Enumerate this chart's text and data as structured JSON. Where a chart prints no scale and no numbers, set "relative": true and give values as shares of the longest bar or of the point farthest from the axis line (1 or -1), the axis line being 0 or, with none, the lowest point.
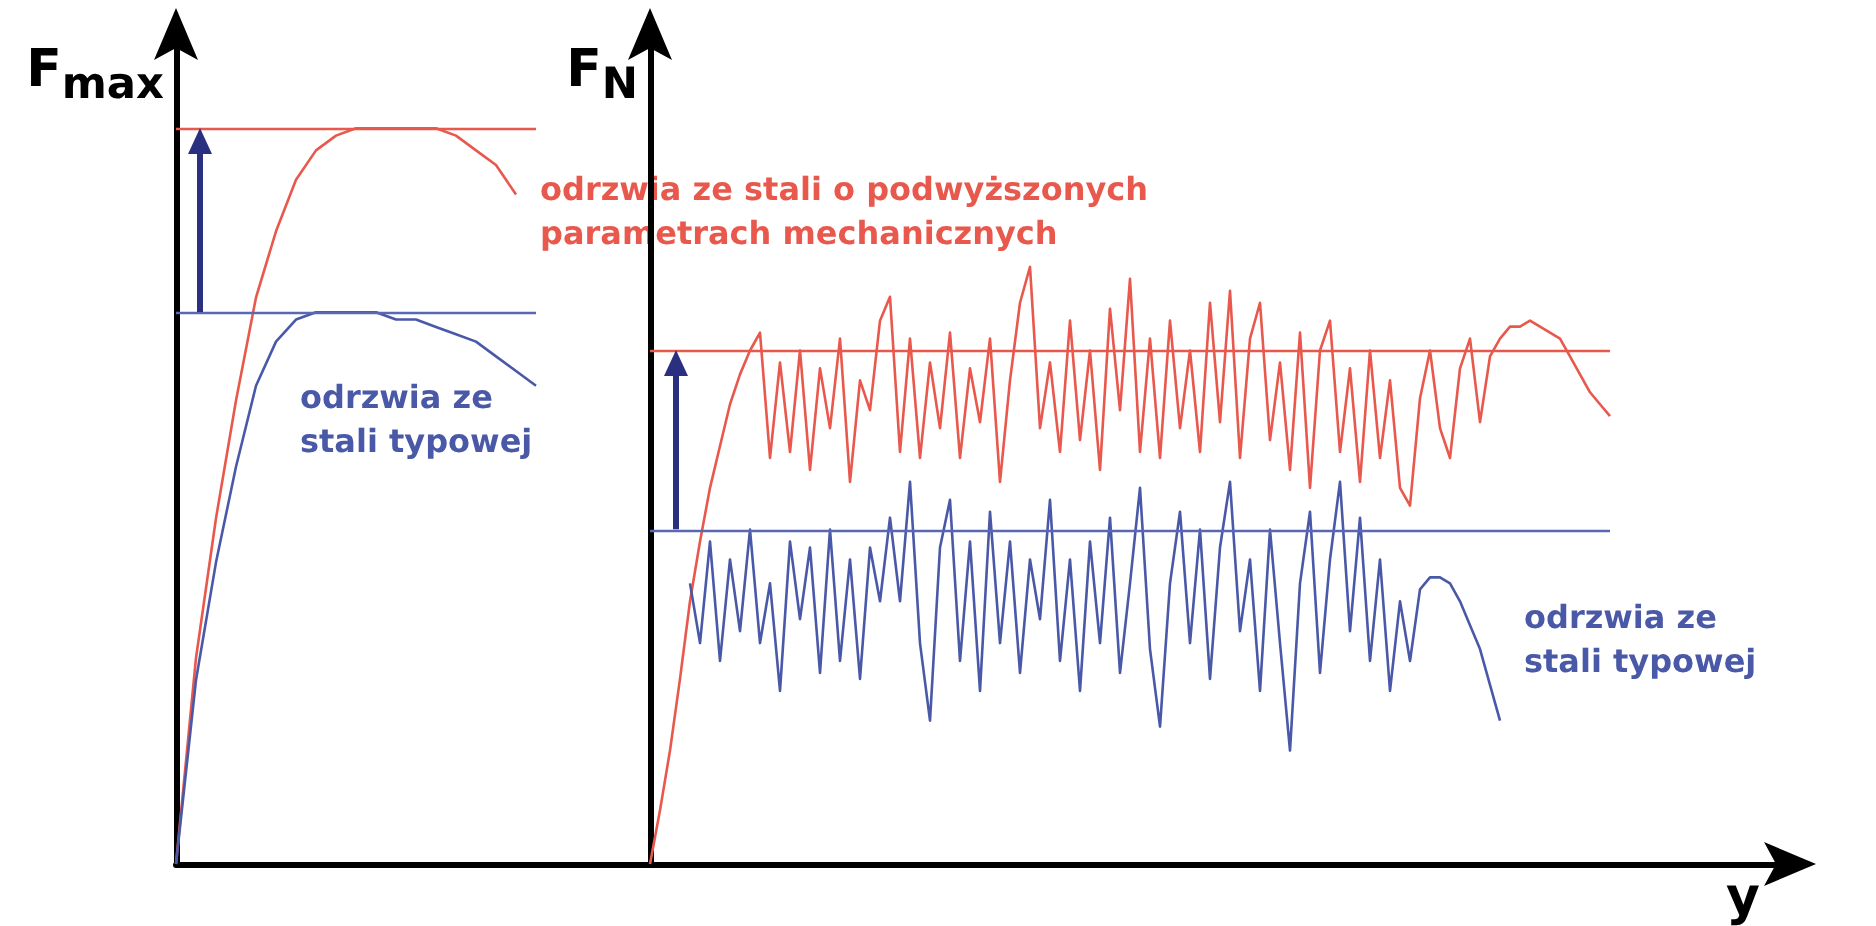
{
  "chart_data": [
    {
      "type": "line",
      "ylabel": "F$_{max}$",
      "relative": true,
      "categories": [
        null,
        null,
        null,
        null,
        null,
        null,
        null,
        null,
        null,
        null,
        null,
        null,
        null,
        null,
        null,
        null,
        null,
        null,
        null
      ],
      "series": [
        {
          "name": "odrzwia ze stali o podwyższonych parametrach mechanicznych",
          "color": "#e8584c",
          "values": [
            0,
            0.28,
            0.47,
            0.63,
            0.77,
            0.86,
            0.93,
            0.97,
            0.99,
            1,
            1,
            1,
            1,
            1,
            0.99,
            0.97,
            0.95,
            0.91,
            null
          ]
        },
        {
          "name": "odrzwia ze stali typowej",
          "color": "#4a58a8",
          "values": [
            0,
            0.25,
            0.41,
            0.54,
            0.65,
            0.71,
            0.74,
            0.75,
            0.75,
            0.75,
            0.75,
            0.74,
            0.74,
            0.73,
            0.72,
            0.71,
            0.69,
            0.67,
            0.65
          ]
        }
      ],
      "ref_lines": [
        {
          "axis": "y",
          "value": 1,
          "color": "#e8584c"
        },
        {
          "axis": "y",
          "value": 0.75,
          "color": "#5a68b4"
        }
      ]
    },
    {
      "type": "line",
      "ylabel": "F$_{N}$",
      "xlabel": "y",
      "relative": true,
      "categories": [
        null,
        null,
        null,
        null,
        null,
        null,
        null,
        null,
        null,
        null,
        null,
        null,
        null,
        null,
        null,
        null,
        null,
        null,
        null,
        null,
        null,
        null,
        null,
        null,
        null,
        null,
        null,
        null,
        null,
        null,
        null,
        null,
        null,
        null,
        null,
        null,
        null,
        null,
        null,
        null,
        null,
        null,
        null,
        null,
        null,
        null,
        null,
        null,
        null,
        null,
        null,
        null,
        null,
        null,
        null,
        null,
        null,
        null,
        null,
        null,
        null,
        null,
        null,
        null,
        null,
        null,
        null,
        null,
        null,
        null,
        null,
        null,
        null,
        null,
        null,
        null,
        null,
        null,
        null,
        null,
        null,
        null,
        null,
        null,
        null,
        null,
        null,
        null,
        null,
        null,
        null,
        null,
        null,
        null,
        null,
        null,
        null
      ],
      "series": [
        {
          "color": "#e8584c",
          "values": [
            0,
            0.09,
            0.19,
            0.31,
            0.44,
            0.54,
            0.63,
            0.7,
            0.77,
            0.82,
            0.86,
            0.89,
            0.68,
            0.84,
            0.69,
            0.86,
            0.66,
            0.83,
            0.73,
            0.88,
            0.64,
            0.81,
            0.76,
            0.91,
            0.95,
            0.69,
            0.88,
            0.68,
            0.84,
            0.73,
            0.89,
            0.68,
            0.83,
            0.74,
            0.88,
            0.64,
            0.81,
            0.94,
            1,
            0.73,
            0.84,
            0.69,
            0.91,
            0.71,
            0.86,
            0.66,
            0.93,
            0.76,
            0.98,
            0.69,
            0.88,
            0.68,
            0.91,
            0.73,
            0.86,
            0.69,
            0.94,
            0.74,
            0.96,
            0.68,
            0.88,
            0.94,
            0.71,
            0.84,
            0.66,
            0.89,
            0.63,
            0.86,
            0.91,
            0.69,
            0.83,
            0.64,
            0.86,
            0.68,
            0.81,
            0.63,
            0.6,
            0.78,
            0.86,
            0.73,
            0.68,
            0.83,
            0.88,
            0.74,
            0.85,
            0.88,
            0.9,
            0.9,
            0.91,
            0.9,
            0.89,
            0.88,
            0.85,
            0.82,
            0.79,
            0.77,
            0.75
          ]
        },
        {
          "name": "odrzwia ze stali typowej",
          "color": "#4a58a8",
          "values": [
            null,
            null,
            null,
            null,
            0.47,
            0.37,
            0.54,
            0.34,
            0.51,
            0.39,
            0.56,
            0.37,
            0.47,
            0.29,
            0.54,
            0.41,
            0.53,
            0.32,
            0.56,
            0.34,
            0.51,
            0.31,
            0.53,
            0.44,
            0.58,
            0.44,
            0.64,
            0.37,
            0.24,
            0.53,
            0.61,
            0.34,
            0.54,
            0.29,
            0.59,
            0.37,
            0.54,
            0.32,
            0.51,
            0.41,
            0.61,
            0.34,
            0.51,
            0.29,
            0.54,
            0.37,
            0.58,
            0.32,
            0.47,
            0.63,
            0.36,
            0.23,
            0.47,
            0.59,
            0.37,
            0.56,
            0.31,
            0.53,
            0.64,
            0.39,
            0.51,
            0.29,
            0.56,
            0.37,
            0.19,
            0.47,
            0.59,
            0.32,
            0.51,
            0.64,
            0.39,
            0.58,
            0.34,
            0.51,
            0.29,
            0.44,
            0.34,
            0.46,
            0.48,
            0.48,
            0.47,
            0.44,
            0.4,
            0.36,
            0.3,
            0.24,
            null,
            null,
            null,
            null,
            null,
            null,
            null,
            null,
            null,
            null,
            null
          ]
        }
      ],
      "ref_lines": [
        {
          "axis": "y",
          "value": 0.86,
          "color": "#e8584c"
        },
        {
          "axis": "y",
          "value": 0.56,
          "color": "#5a68b4"
        }
      ]
    }
  ]
}
